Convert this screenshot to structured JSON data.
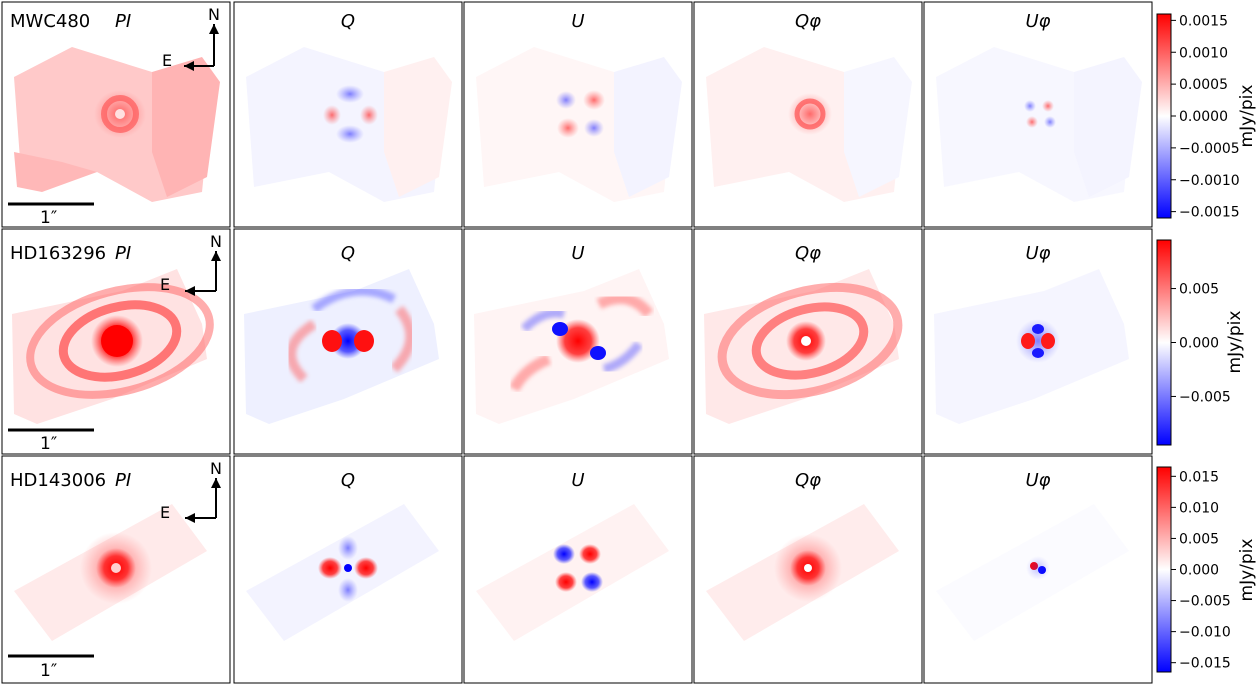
{
  "colors": {
    "positive": "#ff0000",
    "neutral": "#ffffff",
    "negative": "#0000ff",
    "frame": "#000000"
  },
  "panel_titles": [
    "Q",
    "U",
    "Qφ",
    "Uφ"
  ],
  "pi_label": "PI",
  "compass": {
    "north": "N",
    "east": "E"
  },
  "scale_bar_label": "1″",
  "rows": [
    {
      "object": "MWC480",
      "colorbar": {
        "label": "mJy/pix",
        "range": [
          -0.0016,
          0.0016
        ],
        "ticks": [
          "0.0015",
          "0.0010",
          "0.0005",
          "0.0000",
          "−0.0005",
          "−0.0010",
          "−0.0015"
        ],
        "tick_values": [
          0.0015,
          0.001,
          0.0005,
          0.0,
          -0.0005,
          -0.001,
          -0.0015
        ]
      }
    },
    {
      "object": "HD163296",
      "colorbar": {
        "label": "mJy/pix",
        "range": [
          -0.0095,
          0.0095
        ],
        "ticks": [
          "0.005",
          "0.000",
          "−0.005"
        ],
        "tick_values": [
          0.005,
          0.0,
          -0.005
        ]
      }
    },
    {
      "object": "HD143006",
      "colorbar": {
        "label": "mJy/pix",
        "range": [
          -0.0165,
          0.0165
        ],
        "ticks": [
          "0.015",
          "0.010",
          "0.005",
          "0.000",
          "−0.005",
          "−0.010",
          "−0.015"
        ],
        "tick_values": [
          0.015,
          0.01,
          0.005,
          0.0,
          -0.005,
          -0.01,
          -0.015
        ]
      }
    }
  ]
}
